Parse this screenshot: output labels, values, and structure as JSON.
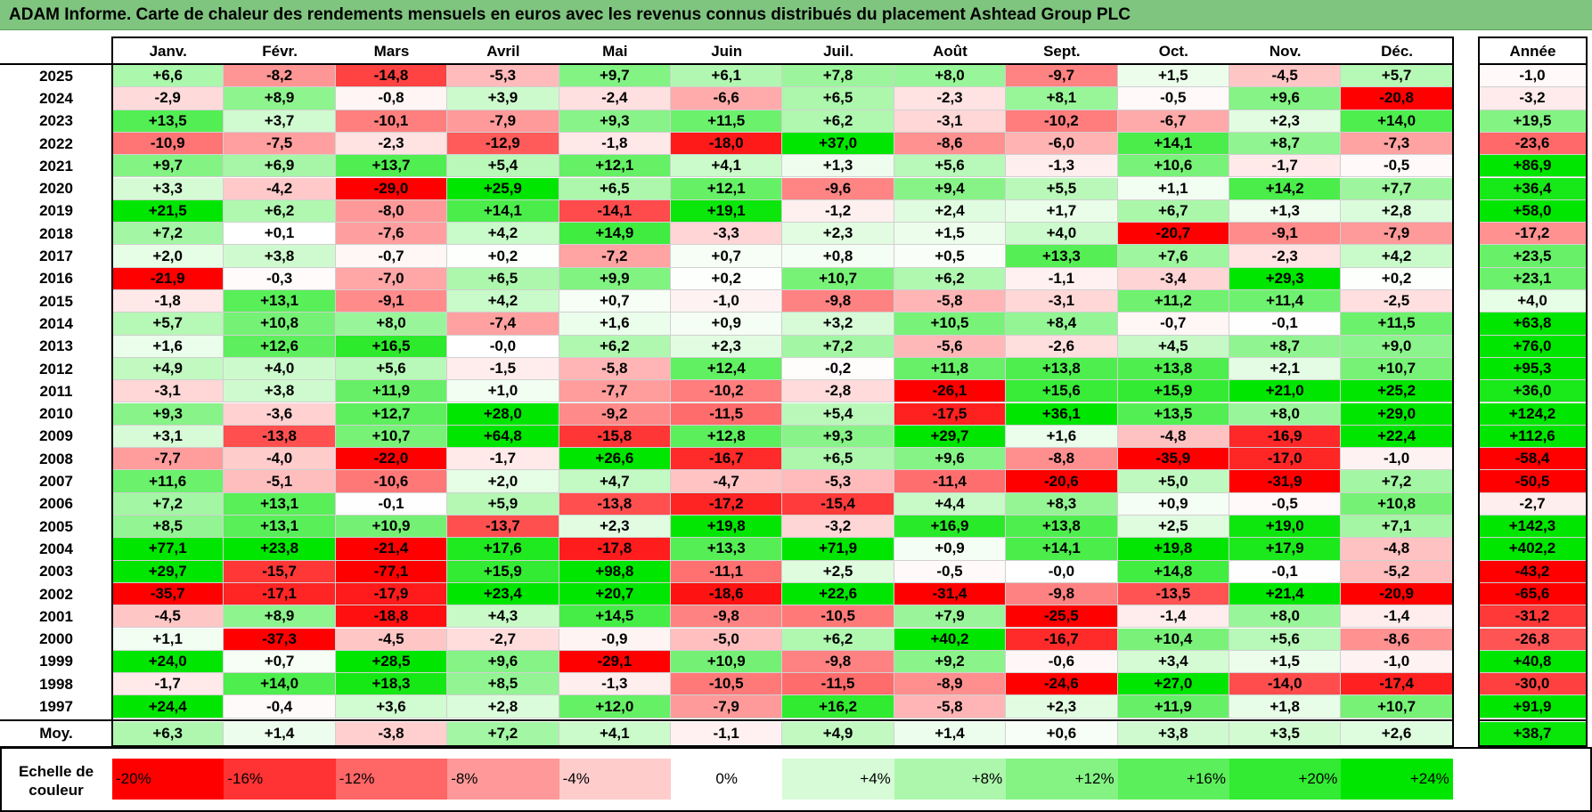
{
  "title": "ADAM Informe. Carte de chaleur des rendements mensuels en euros avec les revenus connus distribués du placement Ashtead Group PLC",
  "chart_data": {
    "type": "heatmap",
    "title": "ADAM Informe. Carte de chaleur des rendements mensuels en euros avec les revenus connus distribués du placement Ashtead Group PLC",
    "columns": [
      "Janv.",
      "Févr.",
      "Mars",
      "Avril",
      "Mai",
      "Juin",
      "Juil.",
      "Août",
      "Sept.",
      "Oct.",
      "Nov.",
      "Déc."
    ],
    "year_header": "Année",
    "rows": [
      {
        "year": "2025",
        "values": [
          "+6,6",
          "-8,2",
          "-14,8",
          "-5,3",
          "+9,7",
          "+6,1",
          "+7,8",
          "+8,0",
          "-9,7",
          "+1,5",
          "-4,5",
          "+5,7"
        ],
        "annual": "-1,0"
      },
      {
        "year": "2024",
        "values": [
          "-2,9",
          "+8,9",
          "-0,8",
          "+3,9",
          "-2,4",
          "-6,6",
          "+6,5",
          "-2,3",
          "+8,1",
          "-0,5",
          "+9,6",
          "-20,8"
        ],
        "annual": "-3,2"
      },
      {
        "year": "2023",
        "values": [
          "+13,5",
          "+3,7",
          "-10,1",
          "-7,9",
          "+9,3",
          "+11,5",
          "+6,2",
          "-3,1",
          "-10,2",
          "-6,7",
          "+2,3",
          "+14,0"
        ],
        "annual": "+19,5"
      },
      {
        "year": "2022",
        "values": [
          "-10,9",
          "-7,5",
          "-2,3",
          "-12,9",
          "-1,8",
          "-18,0",
          "+37,0",
          "-8,6",
          "-6,0",
          "+14,1",
          "+8,7",
          "-7,3"
        ],
        "annual": "-23,6"
      },
      {
        "year": "2021",
        "values": [
          "+9,7",
          "+6,9",
          "+13,7",
          "+5,4",
          "+12,1",
          "+4,1",
          "+1,3",
          "+5,6",
          "-1,3",
          "+10,6",
          "-1,7",
          "-0,5"
        ],
        "annual": "+86,9"
      },
      {
        "year": "2020",
        "values": [
          "+3,3",
          "-4,2",
          "-29,0",
          "+25,9",
          "+6,5",
          "+12,1",
          "-9,6",
          "+9,4",
          "+5,5",
          "+1,1",
          "+14,2",
          "+7,7"
        ],
        "annual": "+36,4"
      },
      {
        "year": "2019",
        "values": [
          "+21,5",
          "+6,2",
          "-8,0",
          "+14,1",
          "-14,1",
          "+19,1",
          "-1,2",
          "+2,4",
          "+1,7",
          "+6,7",
          "+1,3",
          "+2,8"
        ],
        "annual": "+58,0"
      },
      {
        "year": "2018",
        "values": [
          "+7,2",
          "+0,1",
          "-7,6",
          "+4,2",
          "+14,9",
          "-3,3",
          "+2,3",
          "+1,5",
          "+4,0",
          "-20,7",
          "-9,1",
          "-7,9"
        ],
        "annual": "-17,2"
      },
      {
        "year": "2017",
        "values": [
          "+2,0",
          "+3,8",
          "-0,7",
          "+0,2",
          "-7,2",
          "+0,7",
          "+0,8",
          "+0,5",
          "+13,3",
          "+7,6",
          "-2,3",
          "+4,2"
        ],
        "annual": "+23,5"
      },
      {
        "year": "2016",
        "values": [
          "-21,9",
          "-0,3",
          "-7,0",
          "+6,5",
          "+9,9",
          "+0,2",
          "+10,7",
          "+6,2",
          "-1,1",
          "-3,4",
          "+29,3",
          "+0,2"
        ],
        "annual": "+23,1"
      },
      {
        "year": "2015",
        "values": [
          "-1,8",
          "+13,1",
          "-9,1",
          "+4,2",
          "+0,7",
          "-1,0",
          "-9,8",
          "-5,8",
          "-3,1",
          "+11,2",
          "+11,4",
          "-2,5"
        ],
        "annual": "+4,0"
      },
      {
        "year": "2014",
        "values": [
          "+5,7",
          "+10,8",
          "+8,0",
          "-7,4",
          "+1,6",
          "+0,9",
          "+3,2",
          "+10,5",
          "+8,4",
          "-0,7",
          "-0,1",
          "+11,5"
        ],
        "annual": "+63,8"
      },
      {
        "year": "2013",
        "values": [
          "+1,6",
          "+12,6",
          "+16,5",
          "-0,0",
          "+6,2",
          "+2,3",
          "+7,2",
          "-5,6",
          "-2,6",
          "+4,5",
          "+8,7",
          "+9,0"
        ],
        "annual": "+76,0"
      },
      {
        "year": "2012",
        "values": [
          "+4,9",
          "+4,0",
          "+5,6",
          "-1,5",
          "-5,8",
          "+12,4",
          "-0,2",
          "+11,8",
          "+13,8",
          "+13,8",
          "+2,1",
          "+10,7"
        ],
        "annual": "+95,3"
      },
      {
        "year": "2011",
        "values": [
          "-3,1",
          "+3,8",
          "+11,9",
          "+1,0",
          "-7,7",
          "-10,2",
          "-2,8",
          "-26,1",
          "+15,6",
          "+15,9",
          "+21,0",
          "+25,2"
        ],
        "annual": "+36,0"
      },
      {
        "year": "2010",
        "values": [
          "+9,3",
          "-3,6",
          "+12,7",
          "+28,0",
          "-9,2",
          "-11,5",
          "+5,4",
          "-17,5",
          "+36,1",
          "+13,5",
          "+8,0",
          "+29,0"
        ],
        "annual": "+124,2"
      },
      {
        "year": "2009",
        "values": [
          "+3,1",
          "-13,8",
          "+10,7",
          "+64,8",
          "-15,8",
          "+12,8",
          "+9,3",
          "+29,7",
          "+1,6",
          "-4,8",
          "-16,9",
          "+22,4"
        ],
        "annual": "+112,6"
      },
      {
        "year": "2008",
        "values": [
          "-7,7",
          "-4,0",
          "-22,0",
          "-1,7",
          "+26,6",
          "-16,7",
          "+6,5",
          "+9,6",
          "-8,8",
          "-35,9",
          "-17,0",
          "-1,0"
        ],
        "annual": "-58,4"
      },
      {
        "year": "2007",
        "values": [
          "+11,6",
          "-5,1",
          "-10,6",
          "+2,0",
          "+4,7",
          "-4,7",
          "-5,3",
          "-11,4",
          "-20,6",
          "+5,0",
          "-31,9",
          "+7,2"
        ],
        "annual": "-50,5"
      },
      {
        "year": "2006",
        "values": [
          "+7,2",
          "+13,1",
          "-0,1",
          "+5,9",
          "-13,8",
          "-17,2",
          "-15,4",
          "+4,4",
          "+8,3",
          "+0,9",
          "-0,5",
          "+10,8"
        ],
        "annual": "-2,7"
      },
      {
        "year": "2005",
        "values": [
          "+8,5",
          "+13,1",
          "+10,9",
          "-13,7",
          "+2,3",
          "+19,8",
          "-3,2",
          "+16,9",
          "+13,8",
          "+2,5",
          "+19,0",
          "+7,1"
        ],
        "annual": "+142,3"
      },
      {
        "year": "2004",
        "values": [
          "+77,1",
          "+23,8",
          "-21,4",
          "+17,6",
          "-17,8",
          "+13,3",
          "+71,9",
          "+0,9",
          "+14,1",
          "+19,8",
          "+17,9",
          "-4,8"
        ],
        "annual": "+402,2"
      },
      {
        "year": "2003",
        "values": [
          "+29,7",
          "-15,7",
          "-77,1",
          "+15,9",
          "+98,8",
          "-11,1",
          "+2,5",
          "-0,5",
          "-0,0",
          "+14,8",
          "-0,1",
          "-5,2"
        ],
        "annual": "-43,2"
      },
      {
        "year": "2002",
        "values": [
          "-35,7",
          "-17,1",
          "-17,9",
          "+23,4",
          "+20,7",
          "-18,6",
          "+22,6",
          "-31,4",
          "-9,8",
          "-13,5",
          "+21,4",
          "-20,9"
        ],
        "annual": "-65,6"
      },
      {
        "year": "2001",
        "values": [
          "-4,5",
          "+8,9",
          "-18,8",
          "+4,3",
          "+14,5",
          "-9,8",
          "-10,5",
          "+7,9",
          "-25,5",
          "-1,4",
          "+8,0",
          "-1,4"
        ],
        "annual": "-31,2"
      },
      {
        "year": "2000",
        "values": [
          "+1,1",
          "-37,3",
          "-4,5",
          "-2,7",
          "-0,9",
          "-5,0",
          "+6,2",
          "+40,2",
          "-16,7",
          "+10,4",
          "+5,6",
          "-8,6"
        ],
        "annual": "-26,8"
      },
      {
        "year": "1999",
        "values": [
          "+24,0",
          "+0,7",
          "+28,5",
          "+9,6",
          "-29,1",
          "+10,9",
          "-9,8",
          "+9,2",
          "-0,6",
          "+3,4",
          "+1,5",
          "-1,0"
        ],
        "annual": "+40,8"
      },
      {
        "year": "1998",
        "values": [
          "-1,7",
          "+14,0",
          "+18,3",
          "+8,5",
          "-1,3",
          "-10,5",
          "-11,5",
          "-8,9",
          "-24,6",
          "+27,0",
          "-14,0",
          "-17,4"
        ],
        "annual": "-30,0"
      },
      {
        "year": "1997",
        "values": [
          "+24,4",
          "-0,4",
          "+3,6",
          "+2,8",
          "+12,0",
          "-7,9",
          "+16,2",
          "-5,8",
          "+2,3",
          "+11,9",
          "+1,8",
          "+10,7"
        ],
        "annual": "+91,9"
      }
    ],
    "average": {
      "label": "Moy.",
      "values": [
        "+6,3",
        "+1,4",
        "-3,8",
        "+7,2",
        "+4,1",
        "-1,1",
        "+4,9",
        "+1,4",
        "+0,6",
        "+3,8",
        "+3,5",
        "+2,6"
      ],
      "annual": "+38,7"
    },
    "color_scale": {
      "label": "Echelle de couleur",
      "steps": [
        {
          "text": "-20%",
          "value": -20,
          "color": "#ff0000",
          "align": "left"
        },
        {
          "text": "-16%",
          "value": -16,
          "color": "#ff3333",
          "align": "left"
        },
        {
          "text": "-12%",
          "value": -12,
          "color": "#ff6666",
          "align": "left"
        },
        {
          "text": "-8%",
          "value": -8,
          "color": "#ff9999",
          "align": "left"
        },
        {
          "text": "-4%",
          "value": -4,
          "color": "#ffcccc",
          "align": "left"
        },
        {
          "text": "0%",
          "value": 0,
          "color": "#ffffff",
          "align": "center"
        },
        {
          "text": "+4%",
          "value": 4,
          "color": "#d6fbd6",
          "align": "right"
        },
        {
          "text": "+8%",
          "value": 8,
          "color": "#adf7ad",
          "align": "right"
        },
        {
          "text": "+12%",
          "value": 12,
          "color": "#84f384",
          "align": "right"
        },
        {
          "text": "+16%",
          "value": 16,
          "color": "#5bef5b",
          "align": "right"
        },
        {
          "text": "+20%",
          "value": 20,
          "color": "#32eb32",
          "align": "right"
        },
        {
          "text": "+24%",
          "value": 24,
          "color": "#00e600",
          "align": "right"
        }
      ]
    }
  }
}
